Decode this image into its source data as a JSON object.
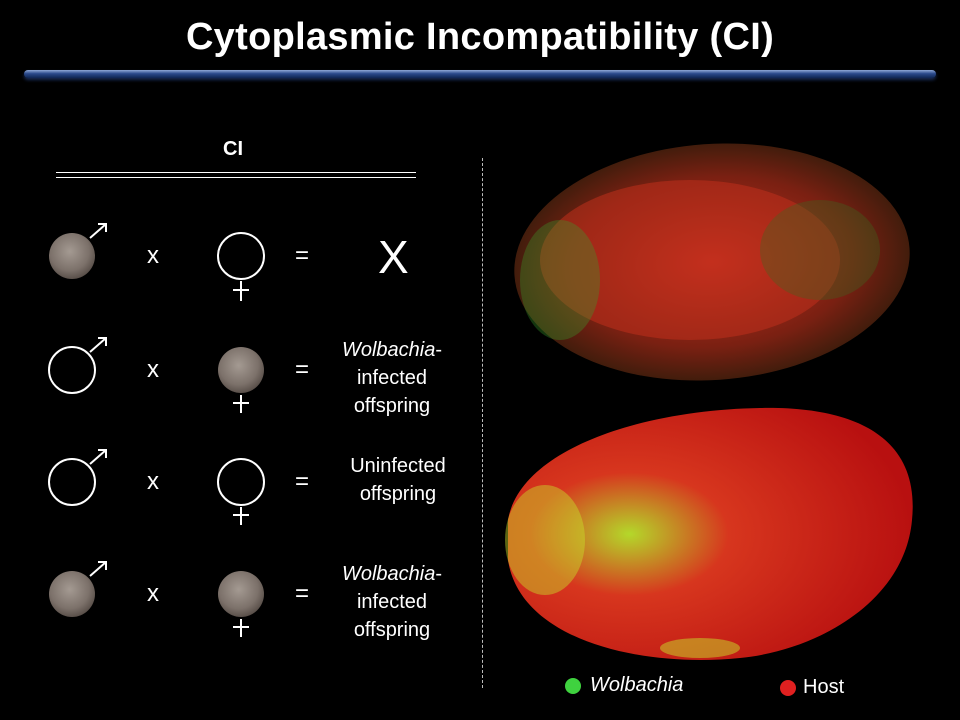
{
  "title": "Cytoplasmic Incompatibility (CI)",
  "ci_label": "CI",
  "operators": {
    "cross": "x",
    "equals": "="
  },
  "rows": [
    {
      "male": "infected",
      "female": "uninfected",
      "result_text": "X"
    },
    {
      "male": "uninfected",
      "female": "infected",
      "result_italic": "Wolbachia",
      "result_rest": "-\ninfected\noffspring"
    },
    {
      "male": "uninfected",
      "female": "uninfected",
      "result_italic": "",
      "result_rest": "Uninfected\noffspring"
    },
    {
      "male": "infected",
      "female": "infected",
      "result_italic": "Wolbachia",
      "result_rest": "-\ninfected\noffspring"
    }
  ],
  "legend": {
    "wolbachia": {
      "label": "Wolbachia",
      "color": "#3fd23f"
    },
    "host": {
      "label": "Host",
      "color": "#e02020"
    }
  },
  "colors": {
    "infected_cell": "#8a7e76",
    "title_bar": "#2b4a8c"
  },
  "icons": [
    "male-symbol-icon",
    "female-symbol-icon"
  ]
}
